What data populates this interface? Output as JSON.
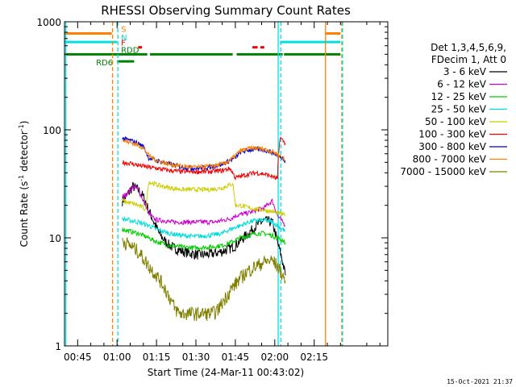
{
  "chart_data": {
    "type": "line",
    "title": "RHESSI Observing Summary Count Rates",
    "xlabel": "Start Time (24-Mar-11 00:43:02)",
    "ylabel_main": "Count Rate (s",
    "ylabel_sup1": "-1",
    "ylabel_mid": " detector",
    "ylabel_sup2": "-1",
    "ylabel_end": ")",
    "y_scale": "log",
    "ylim": [
      1,
      1000
    ],
    "xlim_minutes": [
      40,
      163
    ],
    "x_ticks": [
      {
        "label": "00:45",
        "value": 45
      },
      {
        "label": "01:00",
        "value": 60
      },
      {
        "label": "01:15",
        "value": 75
      },
      {
        "label": "01:30",
        "value": 90
      },
      {
        "label": "01:45",
        "value": 105
      },
      {
        "label": "02:00",
        "value": 120
      },
      {
        "label": "02:15",
        "value": 135
      }
    ],
    "y_ticks": [
      {
        "label": "1",
        "value": 1
      },
      {
        "label": "10",
        "value": 10
      },
      {
        "label": "100",
        "value": 100
      },
      {
        "label": "1000",
        "value": 1000
      }
    ],
    "legend_header_1": "Det 1,3,4,5,6,9,",
    "legend_header_2": "FDecim 1, Att 0",
    "series": [
      {
        "name": "3 - 6 keV",
        "color": "#000000",
        "x": [
          62,
          64,
          66,
          68,
          70,
          72,
          74,
          76,
          78,
          80,
          82,
          85,
          88,
          91,
          94,
          97,
          100,
          103,
          105,
          107,
          110,
          113,
          116,
          119,
          121,
          123,
          124
        ],
        "values": [
          22,
          25,
          30,
          28,
          24,
          18,
          14,
          11,
          9.5,
          8.5,
          8,
          7.5,
          7.2,
          7,
          7,
          7.2,
          7.5,
          8,
          8.5,
          9.5,
          11,
          13,
          14.5,
          14,
          9,
          6,
          4.5
        ]
      },
      {
        "name": "6 - 12 keV",
        "color": "#cc00cc",
        "x": [
          62,
          64,
          66,
          68,
          70,
          72,
          74,
          76,
          78,
          80,
          82,
          85,
          88,
          91,
          94,
          97,
          100,
          103,
          105,
          107,
          110,
          113,
          116,
          119,
          121,
          123,
          124
        ],
        "values": [
          24,
          26,
          30,
          28,
          22,
          17,
          15,
          14.5,
          14.5,
          14,
          14,
          14,
          14,
          14,
          14,
          14,
          14.5,
          15,
          16,
          16.5,
          17,
          18,
          19,
          22,
          16,
          14,
          13
        ]
      },
      {
        "name": "12 - 25 keV",
        "color": "#00cc00",
        "x": [
          62,
          65,
          68,
          70,
          72,
          75,
          80,
          85,
          90,
          95,
          100,
          103,
          105,
          107,
          110,
          113,
          116,
          119,
          121,
          123,
          124
        ],
        "values": [
          12,
          11.5,
          11,
          10.5,
          10,
          9.2,
          8.5,
          8.2,
          8.1,
          8.2,
          8.5,
          9,
          9.5,
          10,
          10.5,
          11,
          11,
          10.5,
          10,
          9.5,
          9
        ]
      },
      {
        "name": "25 - 50 keV",
        "color": "#00dddd",
        "x": [
          62,
          65,
          68,
          70,
          72,
          75,
          80,
          85,
          90,
          95,
          100,
          103,
          105,
          107,
          110,
          113,
          116,
          119,
          121,
          123,
          124
        ],
        "values": [
          15,
          14.5,
          14,
          13.5,
          13,
          12,
          11,
          10.5,
          10.3,
          10.5,
          11,
          12,
          12.5,
          13,
          14,
          14.5,
          14.5,
          14,
          13,
          12,
          11.5
        ]
      },
      {
        "name": "50 - 100 keV",
        "color": "#cccc00",
        "x": [
          62,
          65,
          68,
          70,
          71,
          72,
          75,
          80,
          85,
          90,
          95,
          100,
          103,
          104,
          105,
          107,
          110,
          113,
          116,
          119,
          121,
          123,
          124
        ],
        "values": [
          22,
          21,
          20,
          19,
          18,
          33,
          31,
          29,
          28,
          28,
          28,
          29,
          31,
          32,
          20,
          20,
          19,
          18.5,
          18,
          17.5,
          17,
          16.5,
          16
        ]
      },
      {
        "name": "100 - 300 keV",
        "color": "#ee0000",
        "x": [
          62,
          65,
          68,
          70,
          72,
          75,
          80,
          85,
          90,
          95,
          100,
          103,
          105,
          107,
          110,
          113,
          116,
          119,
          121,
          122,
          123,
          124
        ],
        "values": [
          50,
          49,
          47,
          46,
          45,
          44,
          42,
          41,
          41,
          41,
          42,
          44,
          36,
          37,
          39,
          40,
          39,
          37,
          35,
          85,
          80,
          75
        ]
      },
      {
        "name": "300 - 800 keV",
        "color": "#0000cc",
        "x": [
          62,
          65,
          68,
          70,
          72,
          75,
          80,
          85,
          90,
          95,
          100,
          103,
          105,
          107,
          110,
          113,
          116,
          119,
          121,
          123,
          124
        ],
        "values": [
          83,
          80,
          75,
          70,
          55,
          52,
          48,
          45,
          44,
          45,
          48,
          52,
          55,
          62,
          65,
          66,
          65,
          62,
          58,
          55,
          52
        ]
      },
      {
        "name": "800 - 7000 keV",
        "color": "#ff8000",
        "x": [
          62,
          65,
          68,
          70,
          72,
          75,
          80,
          85,
          90,
          95,
          100,
          103,
          105,
          107,
          110,
          113,
          116,
          119,
          121,
          123,
          124
        ],
        "values": [
          80,
          76,
          72,
          68,
          58,
          52,
          48,
          46,
          45,
          46,
          48,
          52,
          58,
          64,
          67,
          68,
          66,
          63,
          60,
          55,
          52
        ]
      },
      {
        "name": "7000 - 15000 keV",
        "color": "#808000",
        "x": [
          62,
          65,
          68,
          70,
          72,
          75,
          78,
          80,
          82,
          84,
          86,
          88,
          90,
          92,
          94,
          96,
          98,
          100,
          102,
          104,
          106,
          108,
          110,
          113,
          116,
          119,
          121,
          123,
          124
        ],
        "values": [
          9.5,
          8.5,
          7.5,
          6.5,
          5.5,
          4.5,
          3.5,
          2.8,
          2.2,
          2,
          2,
          2,
          2,
          2,
          2,
          2,
          2.1,
          2.5,
          3,
          3.5,
          4,
          4.5,
          5,
          5.5,
          6,
          6.2,
          5.5,
          4.5,
          4
        ]
      }
    ],
    "flag_rows": [
      {
        "label": "S",
        "color": "#ff8000",
        "value": 780,
        "segments": [
          [
            40,
            58
          ],
          [
            139.5,
            145
          ]
        ]
      },
      {
        "label": "N",
        "color": "#00e0e0",
        "value": 650,
        "segments": [
          [
            40,
            60
          ],
          [
            122,
            145
          ]
        ]
      },
      {
        "label": "F",
        "color": "#ee0000",
        "value": 580,
        "segments": [
          [
            68,
            69.5
          ],
          [
            111.5,
            113.5
          ],
          [
            114.5,
            116
          ]
        ]
      },
      {
        "label": "RDD",
        "color": "#008000",
        "value": 500,
        "segments": [
          [
            40,
            71.5
          ],
          [
            72.5,
            104
          ],
          [
            105.5,
            123
          ],
          [
            123.5,
            145
          ]
        ]
      },
      {
        "label": "RD6",
        "color": "#008000",
        "value": 430,
        "segments": [
          [
            60,
            66.5
          ]
        ]
      }
    ],
    "vlines": [
      {
        "value": 40.5,
        "color": "#00e0e0",
        "style": "solid"
      },
      {
        "value": 58.3,
        "color": "#ff8000",
        "style": "dashed"
      },
      {
        "value": 60.3,
        "color": "#00e0e0",
        "style": "dashed"
      },
      {
        "value": 121.3,
        "color": "#00e0e0",
        "style": "solid"
      },
      {
        "value": 122.3,
        "color": "#00e0e0",
        "style": "dashed"
      },
      {
        "value": 139.3,
        "color": "#ff8000",
        "style": "solid"
      },
      {
        "value": 145.5,
        "color": "#ff8000",
        "style": "dashed"
      },
      {
        "value": 145.8,
        "color": "#00e0e0",
        "style": "dashed"
      }
    ],
    "timestamp": "15-Oct-2021 21:37"
  }
}
